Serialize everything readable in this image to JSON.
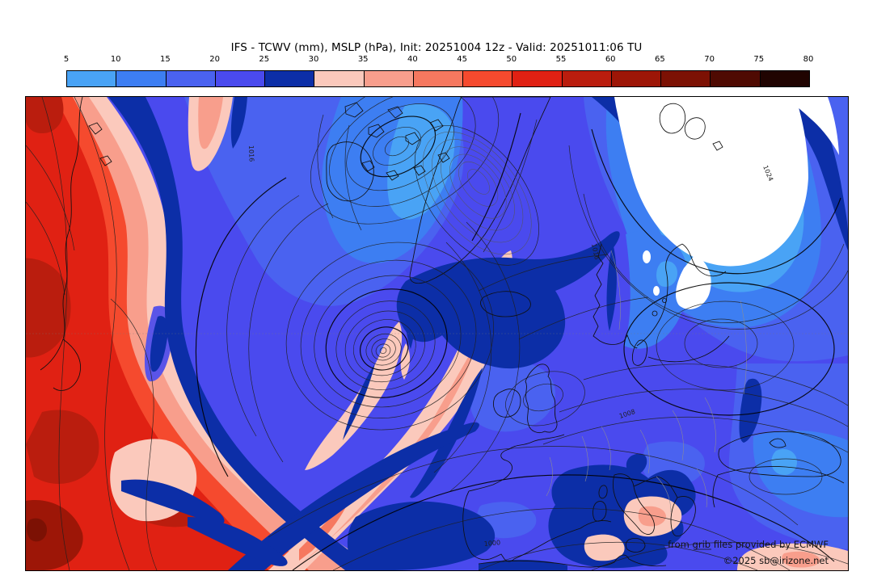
{
  "title": "IFS - TCWV (mm), MSLP (hPa), Init: 20251004 12z - Valid: 20251011:06 TU",
  "colorbar": {
    "tick_labels": [
      "5",
      "10",
      "15",
      "20",
      "25",
      "30",
      "35",
      "40",
      "45",
      "50",
      "55",
      "60",
      "65",
      "70",
      "75",
      "80"
    ],
    "segment_colors": [
      "#49a3f5",
      "#3d7ef2",
      "#4a62f0",
      "#4a4aee",
      "#0c2ea7",
      "#fbc9bc",
      "#f89e8c",
      "#f6785f",
      "#f54a2e",
      "#e02113",
      "#ba1d0e",
      "#9d1607",
      "#7c1104",
      "#4f0a02",
      "#200401"
    ]
  },
  "map": {
    "attribution_line1": "from grib files provided by ECMWF",
    "attribution_line2": "©2025 sb@irizone.net",
    "contour_labels": [
      "1016",
      "1016",
      "1008",
      "1000",
      "1024"
    ]
  },
  "palette": {
    "white_lt5": "#ffffff",
    "blue_5_10": "#49a3f5",
    "blue_10_15": "#3d7ef2",
    "blue_15_20": "#4a62f0",
    "blue_20_25": "#4a4aee",
    "navy_25_30": "#0c2ea7",
    "violet_edge": "#5a54e8",
    "pink_30_35": "#fbc9bc",
    "salmon_35_40": "#f89e8c",
    "red_40_45": "#f6785f",
    "red_45_50": "#f54a2e",
    "red_50_55": "#e02113",
    "red_55_60": "#ba1d0e",
    "red_60_65": "#9d1607",
    "red_65_70": "#7c1104",
    "red_70_75": "#4f0a02",
    "red_75_80": "#200401",
    "contour": "#1f1f1f",
    "coast": "#101010",
    "border_gray": "#8f8f8f",
    "frame": "#000000",
    "title_color": "#000000",
    "attribution_color": "#141414"
  },
  "chart_data": {
    "type": "heatmap",
    "shaded_field": "TCWV (mm)",
    "contour_field": "MSLP (hPa)",
    "model": "IFS",
    "init": "20251004 12z",
    "valid": "20251011:06 TU",
    "colorbar_levels": [
      5,
      10,
      15,
      20,
      25,
      30,
      35,
      40,
      45,
      50,
      55,
      60,
      65,
      70,
      75,
      80
    ],
    "colorbar_colors": [
      "#49a3f5",
      "#3d7ef2",
      "#4a62f0",
      "#4a4aee",
      "#0c2ea7",
      "#fbc9bc",
      "#f89e8c",
      "#f6785f",
      "#f54a2e",
      "#e02113",
      "#ba1d0e",
      "#9d1607",
      "#7c1104",
      "#4f0a02",
      "#200401"
    ],
    "legend_position": "top",
    "grid": false
  }
}
